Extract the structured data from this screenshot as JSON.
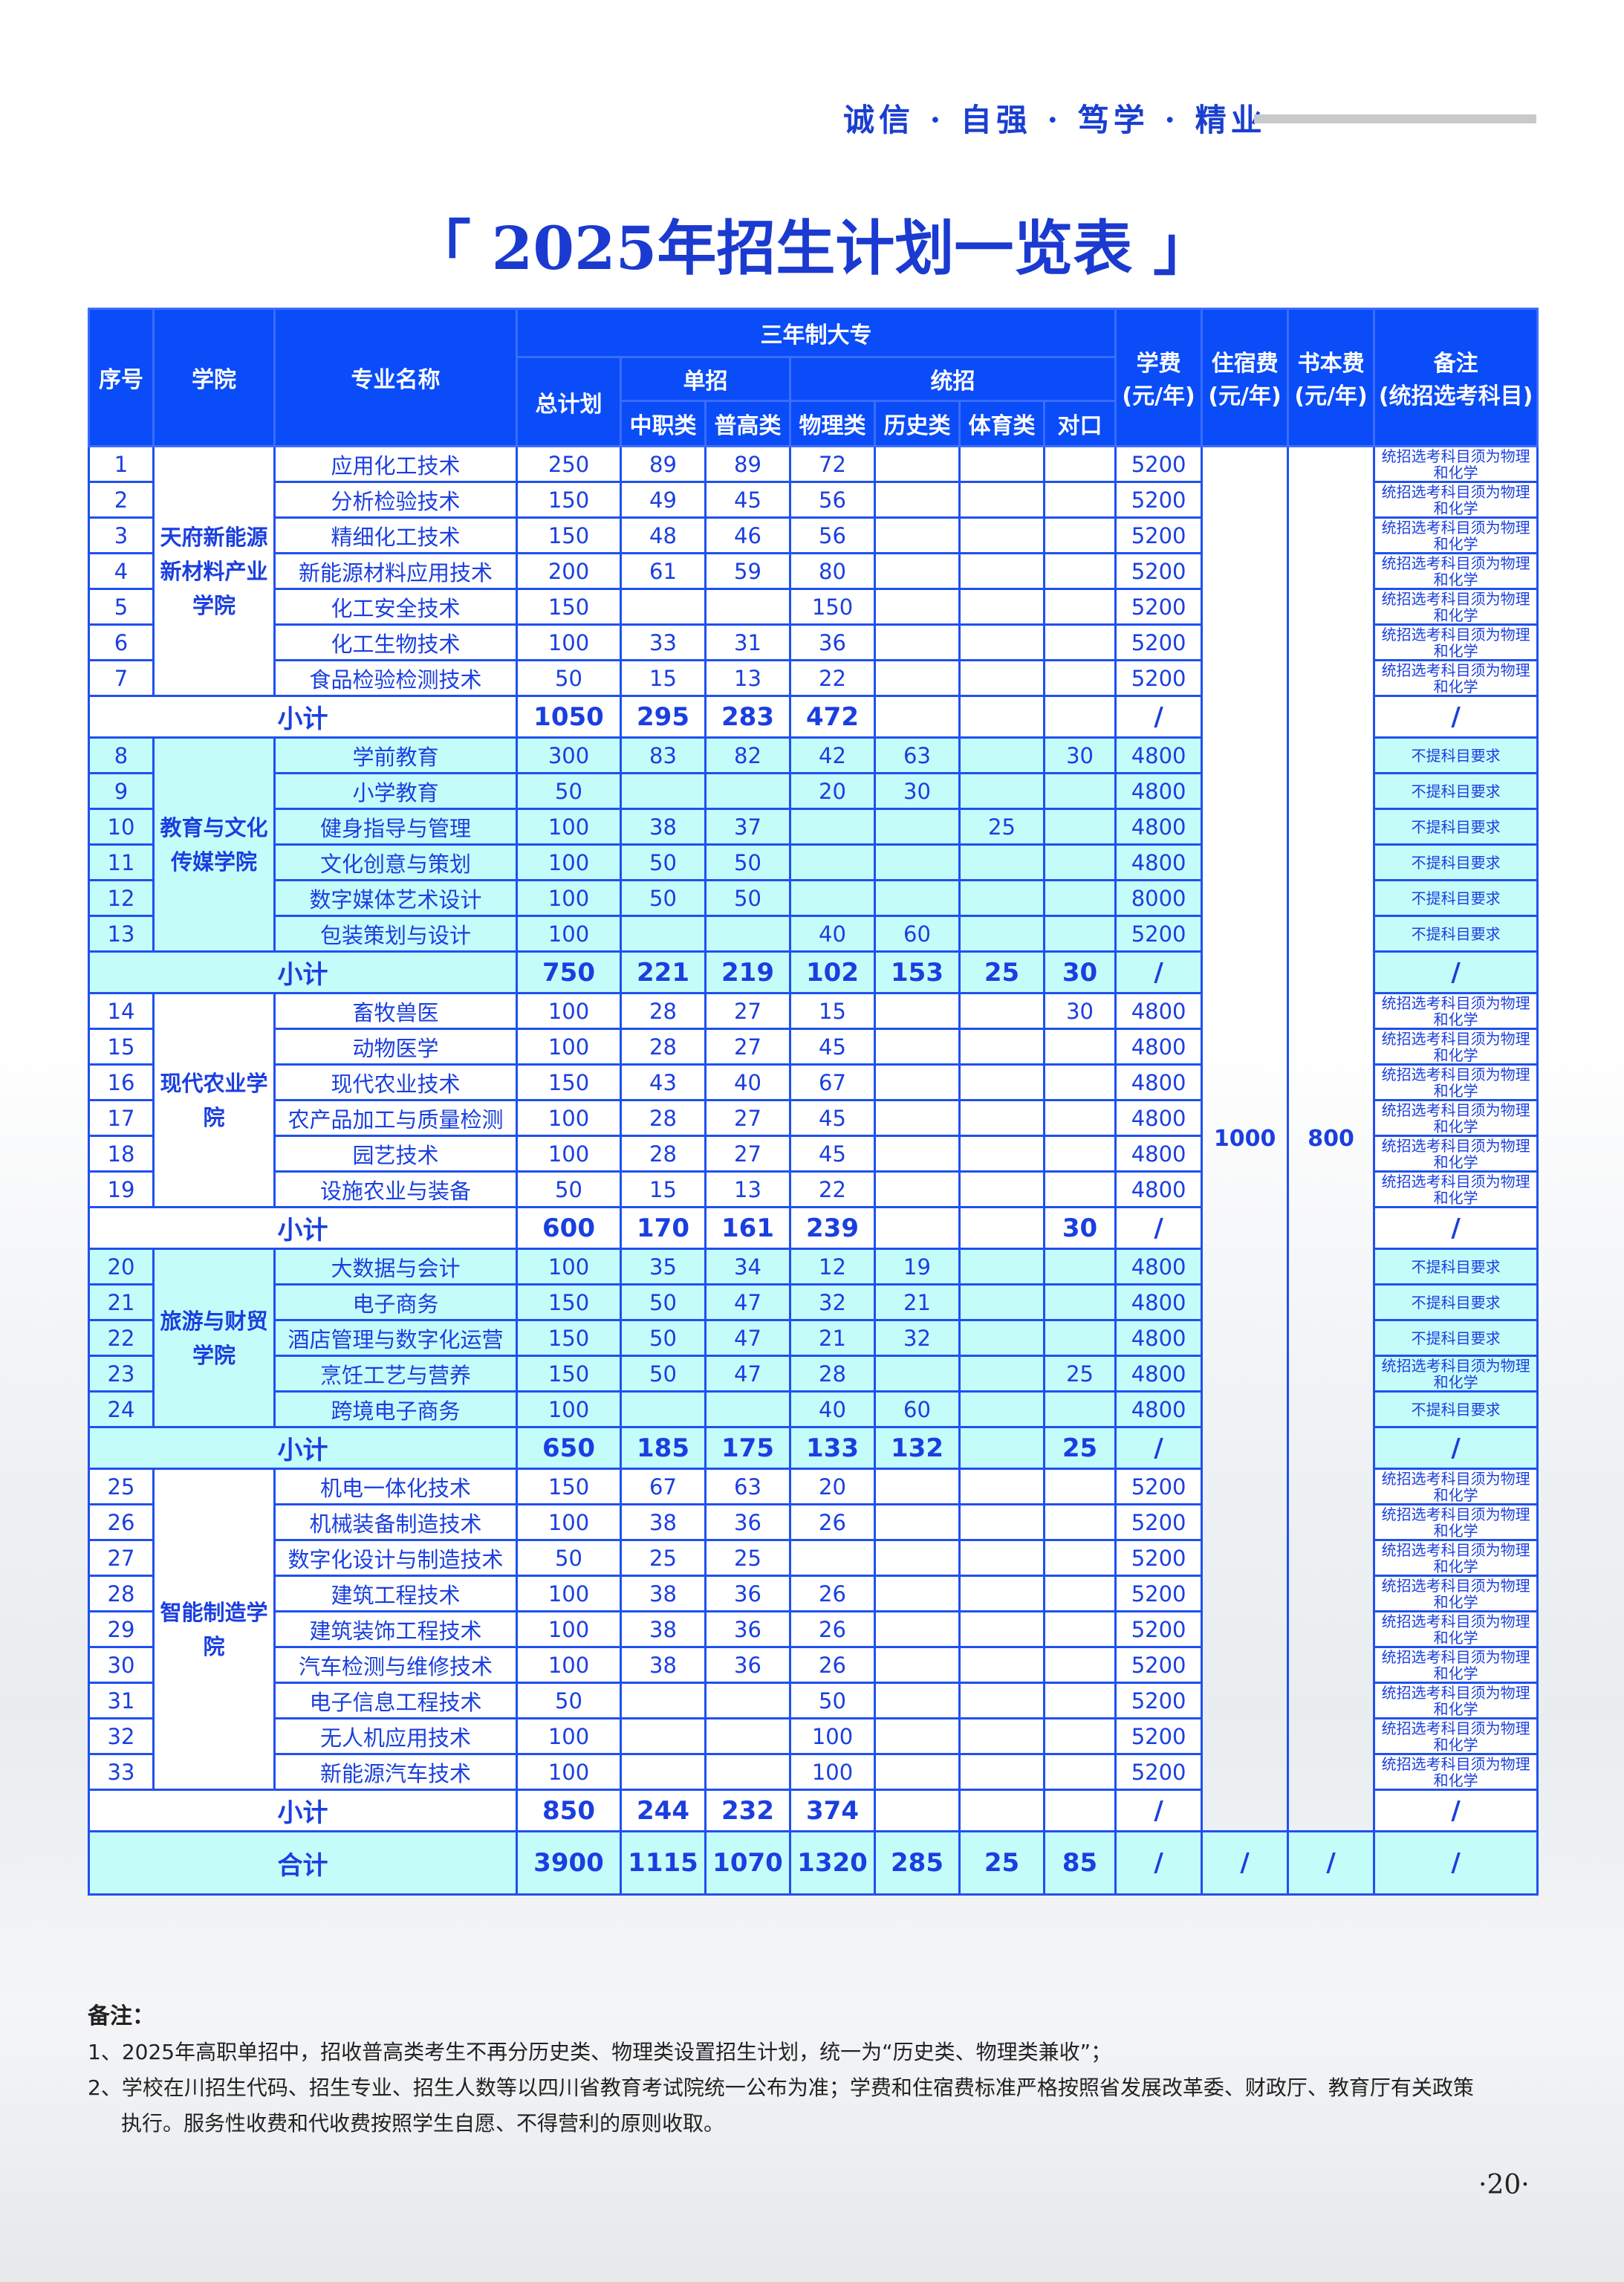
{
  "motto": "诚信 · 自强 · 笃学 · 精业",
  "title": "「 2025年招生计划一览表 」",
  "header": {
    "seq": "序号",
    "college": "学院",
    "major": "专业名称",
    "program": "三年制大专",
    "total": "总计划",
    "danzhao": "单招",
    "tongzhao": "统招",
    "zhongzhi": "中职类",
    "pugao": "普高类",
    "wuli": "物理类",
    "lishi": "历史类",
    "tiyu": "体育类",
    "duikou": "对口",
    "tuition": "学费\n(元/年)",
    "dorm": "住宿费\n(元/年)",
    "book": "书本费\n(元/年)",
    "note": "备注\n(统招选考科目)"
  },
  "dorm_fee": "1000",
  "book_fee": "800",
  "subtotal_label": "小计",
  "total_label": "合计",
  "colleges": [
    {
      "name": "天府新能源新材料产业学院",
      "rows": [
        [
          "1",
          "应用化工技术",
          "250",
          "89",
          "89",
          "72",
          "",
          "",
          "",
          "5200",
          "统招选考科目须为物理和化学"
        ],
        [
          "2",
          "分析检验技术",
          "150",
          "49",
          "45",
          "56",
          "",
          "",
          "",
          "5200",
          "统招选考科目须为物理和化学"
        ],
        [
          "3",
          "精细化工技术",
          "150",
          "48",
          "46",
          "56",
          "",
          "",
          "",
          "5200",
          "统招选考科目须为物理和化学"
        ],
        [
          "4",
          "新能源材料应用技术",
          "200",
          "61",
          "59",
          "80",
          "",
          "",
          "",
          "5200",
          "统招选考科目须为物理和化学"
        ],
        [
          "5",
          "化工安全技术",
          "150",
          "",
          "",
          "150",
          "",
          "",
          "",
          "5200",
          "统招选考科目须为物理和化学"
        ],
        [
          "6",
          "化工生物技术",
          "100",
          "33",
          "31",
          "36",
          "",
          "",
          "",
          "5200",
          "统招选考科目须为物理和化学"
        ],
        [
          "7",
          "食品检验检测技术",
          "50",
          "15",
          "13",
          "22",
          "",
          "",
          "",
          "5200",
          "统招选考科目须为物理和化学"
        ]
      ],
      "subtotal": [
        "1050",
        "295",
        "283",
        "472",
        "",
        "",
        "",
        "/",
        "/"
      ]
    },
    {
      "name": "教育与文化传媒学院",
      "rows": [
        [
          "8",
          "学前教育",
          "300",
          "83",
          "82",
          "42",
          "63",
          "",
          "30",
          "4800",
          "不提科目要求"
        ],
        [
          "9",
          "小学教育",
          "50",
          "",
          "",
          "20",
          "30",
          "",
          "",
          "4800",
          "不提科目要求"
        ],
        [
          "10",
          "健身指导与管理",
          "100",
          "38",
          "37",
          "",
          "",
          "25",
          "",
          "4800",
          "不提科目要求"
        ],
        [
          "11",
          "文化创意与策划",
          "100",
          "50",
          "50",
          "",
          "",
          "",
          "",
          "4800",
          "不提科目要求"
        ],
        [
          "12",
          "数字媒体艺术设计",
          "100",
          "50",
          "50",
          "",
          "",
          "",
          "",
          "8000",
          "不提科目要求"
        ],
        [
          "13",
          "包装策划与设计",
          "100",
          "",
          "",
          "40",
          "60",
          "",
          "",
          "5200",
          "不提科目要求"
        ]
      ],
      "subtotal": [
        "750",
        "221",
        "219",
        "102",
        "153",
        "25",
        "30",
        "/",
        "/"
      ]
    },
    {
      "name": "现代农业学院",
      "rows": [
        [
          "14",
          "畜牧兽医",
          "100",
          "28",
          "27",
          "15",
          "",
          "",
          "30",
          "4800",
          "统招选考科目须为物理和化学"
        ],
        [
          "15",
          "动物医学",
          "100",
          "28",
          "27",
          "45",
          "",
          "",
          "",
          "4800",
          "统招选考科目须为物理和化学"
        ],
        [
          "16",
          "现代农业技术",
          "150",
          "43",
          "40",
          "67",
          "",
          "",
          "",
          "4800",
          "统招选考科目须为物理和化学"
        ],
        [
          "17",
          "农产品加工与质量检测",
          "100",
          "28",
          "27",
          "45",
          "",
          "",
          "",
          "4800",
          "统招选考科目须为物理和化学"
        ],
        [
          "18",
          "园艺技术",
          "100",
          "28",
          "27",
          "45",
          "",
          "",
          "",
          "4800",
          "统招选考科目须为物理和化学"
        ],
        [
          "19",
          "设施农业与装备",
          "50",
          "15",
          "13",
          "22",
          "",
          "",
          "",
          "4800",
          "统招选考科目须为物理和化学"
        ]
      ],
      "subtotal": [
        "600",
        "170",
        "161",
        "239",
        "",
        "",
        "30",
        "/",
        "/"
      ]
    },
    {
      "name": "旅游与财贸学院",
      "rows": [
        [
          "20",
          "大数据与会计",
          "100",
          "35",
          "34",
          "12",
          "19",
          "",
          "",
          "4800",
          "不提科目要求"
        ],
        [
          "21",
          "电子商务",
          "150",
          "50",
          "47",
          "32",
          "21",
          "",
          "",
          "4800",
          "不提科目要求"
        ],
        [
          "22",
          "酒店管理与数字化运营",
          "150",
          "50",
          "47",
          "21",
          "32",
          "",
          "",
          "4800",
          "不提科目要求"
        ],
        [
          "23",
          "烹饪工艺与营养",
          "150",
          "50",
          "47",
          "28",
          "",
          "",
          "25",
          "4800",
          "统招选考科目须为物理和化学"
        ],
        [
          "24",
          "跨境电子商务",
          "100",
          "",
          "",
          "40",
          "60",
          "",
          "",
          "4800",
          "不提科目要求"
        ]
      ],
      "subtotal": [
        "650",
        "185",
        "175",
        "133",
        "132",
        "",
        "25",
        "/",
        "/"
      ]
    },
    {
      "name": "智能制造学院",
      "rows": [
        [
          "25",
          "机电一体化技术",
          "150",
          "67",
          "63",
          "20",
          "",
          "",
          "",
          "5200",
          "统招选考科目须为物理和化学"
        ],
        [
          "26",
          "机械装备制造技术",
          "100",
          "38",
          "36",
          "26",
          "",
          "",
          "",
          "5200",
          "统招选考科目须为物理和化学"
        ],
        [
          "27",
          "数字化设计与制造技术",
          "50",
          "25",
          "25",
          "",
          "",
          "",
          "",
          "5200",
          "统招选考科目须为物理和化学"
        ],
        [
          "28",
          "建筑工程技术",
          "100",
          "38",
          "36",
          "26",
          "",
          "",
          "",
          "5200",
          "统招选考科目须为物理和化学"
        ],
        [
          "29",
          "建筑装饰工程技术",
          "100",
          "38",
          "36",
          "26",
          "",
          "",
          "",
          "5200",
          "统招选考科目须为物理和化学"
        ],
        [
          "30",
          "汽车检测与维修技术",
          "100",
          "38",
          "36",
          "26",
          "",
          "",
          "",
          "5200",
          "统招选考科目须为物理和化学"
        ],
        [
          "31",
          "电子信息工程技术",
          "50",
          "",
          "",
          "50",
          "",
          "",
          "",
          "5200",
          "统招选考科目须为物理和化学"
        ],
        [
          "32",
          "无人机应用技术",
          "100",
          "",
          "",
          "100",
          "",
          "",
          "",
          "5200",
          "统招选考科目须为物理和化学"
        ],
        [
          "33",
          "新能源汽车技术",
          "100",
          "",
          "",
          "100",
          "",
          "",
          "",
          "5200",
          "统招选考科目须为物理和化学"
        ]
      ],
      "subtotal": [
        "850",
        "244",
        "232",
        "374",
        "",
        "",
        "",
        "/",
        "/"
      ]
    }
  ],
  "total": [
    "3900",
    "1115",
    "1070",
    "1320",
    "285",
    "25",
    "85",
    "/",
    "/",
    "/",
    "/"
  ],
  "notes": {
    "heading": "备注：",
    "items": [
      "1、2025年高职单招中，招收普高类考生不再分历史类、物理类设置招生计划，统一为“历史类、物理类兼收”；",
      "2、学校在川招生代码、招生专业、招生人数等以四川省教育考试院统一公布为准；学费和住宿费标准严格按照省发展改革委、财政厅、教育厅有关政策",
      "执行。服务性收费和代收费按照学生自愿、不得营利的原则收取。"
    ]
  },
  "page_number": "·20·",
  "colors": {
    "header_blue": "#0a4cf8",
    "line_blue": "#1f50f0",
    "text_blue": "#1a3fe0",
    "highlight_cyan": "#c4fcf9"
  }
}
